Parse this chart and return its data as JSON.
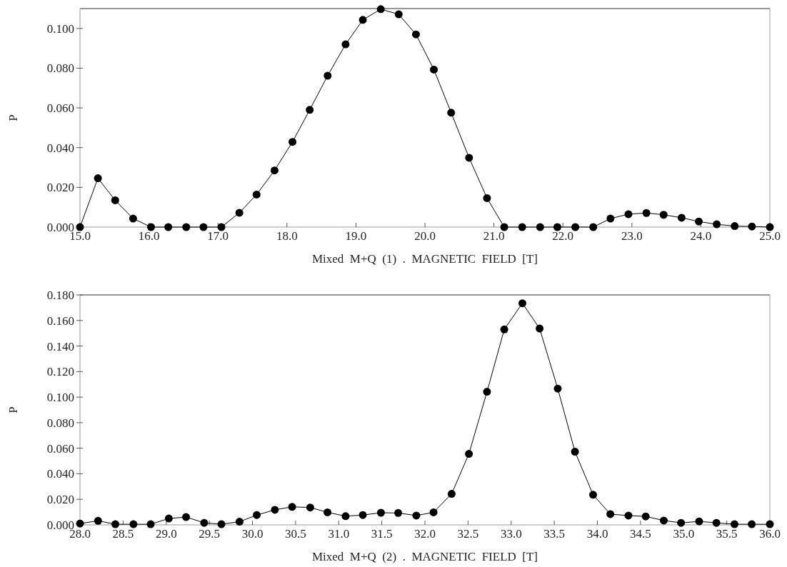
{
  "chart_data": [
    {
      "type": "line",
      "xlabel": "Mixed  M+Q  (1)  .  MAGNETIC  FIELD  [T]",
      "ylabel": "P",
      "marker": "circle",
      "line_style": "solid",
      "grid": false,
      "xlim": [
        15,
        25
      ],
      "ylim": [
        0,
        0.11
      ],
      "xticks": [
        {
          "value": 15,
          "label": "15.0"
        },
        {
          "value": 16,
          "label": "16.0"
        },
        {
          "value": 17,
          "label": "17.0"
        },
        {
          "value": 18,
          "label": "18.0"
        },
        {
          "value": 19,
          "label": "19.0"
        },
        {
          "value": 20,
          "label": "20.0"
        },
        {
          "value": 21,
          "label": "21.0"
        },
        {
          "value": 22,
          "label": "22.0"
        },
        {
          "value": 23,
          "label": "23.0"
        },
        {
          "value": 24,
          "label": "24.0"
        },
        {
          "value": 25,
          "label": "25.0"
        }
      ],
      "yticks": [
        {
          "value": 0,
          "label": "0.000"
        },
        {
          "value": 0.02,
          "label": "0.020"
        },
        {
          "value": 0.04,
          "label": "0.040"
        },
        {
          "value": 0.06,
          "label": "0.060"
        },
        {
          "value": 0.08,
          "label": "0.080"
        },
        {
          "value": 0.1,
          "label": "0.100"
        }
      ],
      "series": [
        {
          "color": "#000000",
          "x": [
            15,
            15.26,
            15.51,
            15.77,
            16.03,
            16.28,
            16.54,
            16.79,
            17.05,
            17.31,
            17.56,
            17.82,
            18.08,
            18.33,
            18.59,
            18.85,
            19.1,
            19.36,
            19.62,
            19.87,
            20.13,
            20.38,
            20.64,
            20.9,
            21.15,
            21.41,
            21.67,
            21.92,
            22.18,
            22.44,
            22.69,
            22.95,
            23.21,
            23.46,
            23.72,
            23.97,
            24.23,
            24.49,
            24.74,
            25
          ],
          "values": [
            0,
            0.0246,
            0.0135,
            0.0043,
            0,
            0,
            0,
            0,
            0,
            0.0072,
            0.0164,
            0.0285,
            0.0429,
            0.059,
            0.0762,
            0.092,
            0.1043,
            0.1097,
            0.1071,
            0.097,
            0.0793,
            0.0576,
            0.0349,
            0.0146,
            0,
            0,
            0,
            0,
            0,
            0,
            0.0043,
            0.0065,
            0.0071,
            0.0062,
            0.0047,
            0.0028,
            0.0014,
            0.0005,
            0.0003,
            0
          ]
        }
      ]
    },
    {
      "type": "line",
      "xlabel": "Mixed  M+Q  (2)  .  MAGNETIC  FIELD  [T]",
      "ylabel": "P",
      "marker": "circle",
      "line_style": "solid",
      "grid": false,
      "xlim": [
        28,
        36
      ],
      "ylim": [
        0,
        0.18
      ],
      "xticks": [
        {
          "value": 28,
          "label": "28.0"
        },
        {
          "value": 28.5,
          "label": "28.5"
        },
        {
          "value": 29,
          "label": "29.0"
        },
        {
          "value": 29.5,
          "label": "29.5"
        },
        {
          "value": 30,
          "label": "30.0"
        },
        {
          "value": 30.5,
          "label": "30.5"
        },
        {
          "value": 31,
          "label": "31.0"
        },
        {
          "value": 31.5,
          "label": "31.5"
        },
        {
          "value": 32,
          "label": "32.0"
        },
        {
          "value": 32.5,
          "label": "32.5"
        },
        {
          "value": 33,
          "label": "33.0"
        },
        {
          "value": 33.5,
          "label": "33.5"
        },
        {
          "value": 34,
          "label": "34.0"
        },
        {
          "value": 34.5,
          "label": "34.5"
        },
        {
          "value": 35,
          "label": "35.0"
        },
        {
          "value": 35.5,
          "label": "35.5"
        },
        {
          "value": 36,
          "label": "36.0"
        }
      ],
      "yticks": [
        {
          "value": 0,
          "label": "0.000"
        },
        {
          "value": 0.02,
          "label": "0.020"
        },
        {
          "value": 0.04,
          "label": "0.040"
        },
        {
          "value": 0.06,
          "label": "0.060"
        },
        {
          "value": 0.08,
          "label": "0.080"
        },
        {
          "value": 0.1,
          "label": "0.100"
        },
        {
          "value": 0.12,
          "label": "0.120"
        },
        {
          "value": 0.14,
          "label": "0.140"
        },
        {
          "value": 0.16,
          "label": "0.160"
        },
        {
          "value": 0.18,
          "label": "0.180"
        }
      ],
      "series": [
        {
          "color": "#000000",
          "x": [
            28,
            28.21,
            28.41,
            28.62,
            28.82,
            29.03,
            29.23,
            29.44,
            29.64,
            29.85,
            30.05,
            30.26,
            30.46,
            30.67,
            30.87,
            31.08,
            31.28,
            31.49,
            31.69,
            31.9,
            32.1,
            32.31,
            32.51,
            32.72,
            32.92,
            33.13,
            33.33,
            33.54,
            33.74,
            33.95,
            34.15,
            34.36,
            34.56,
            34.77,
            34.97,
            35.18,
            35.38,
            35.59,
            35.79,
            36
          ],
          "values": [
            0.001,
            0.0032,
            0.0005,
            0.0005,
            0.0005,
            0.005,
            0.0061,
            0.0016,
            0.0005,
            0.0025,
            0.0077,
            0.0118,
            0.0141,
            0.0136,
            0.0098,
            0.0068,
            0.0077,
            0.0095,
            0.0093,
            0.0073,
            0.0098,
            0.0243,
            0.0556,
            0.1042,
            0.153,
            0.1735,
            0.1537,
            0.1067,
            0.0573,
            0.0236,
            0.0084,
            0.0073,
            0.0066,
            0.0034,
            0.0016,
            0.0027,
            0.0016,
            0.0005,
            0.0005,
            0.0005
          ]
        }
      ]
    }
  ]
}
